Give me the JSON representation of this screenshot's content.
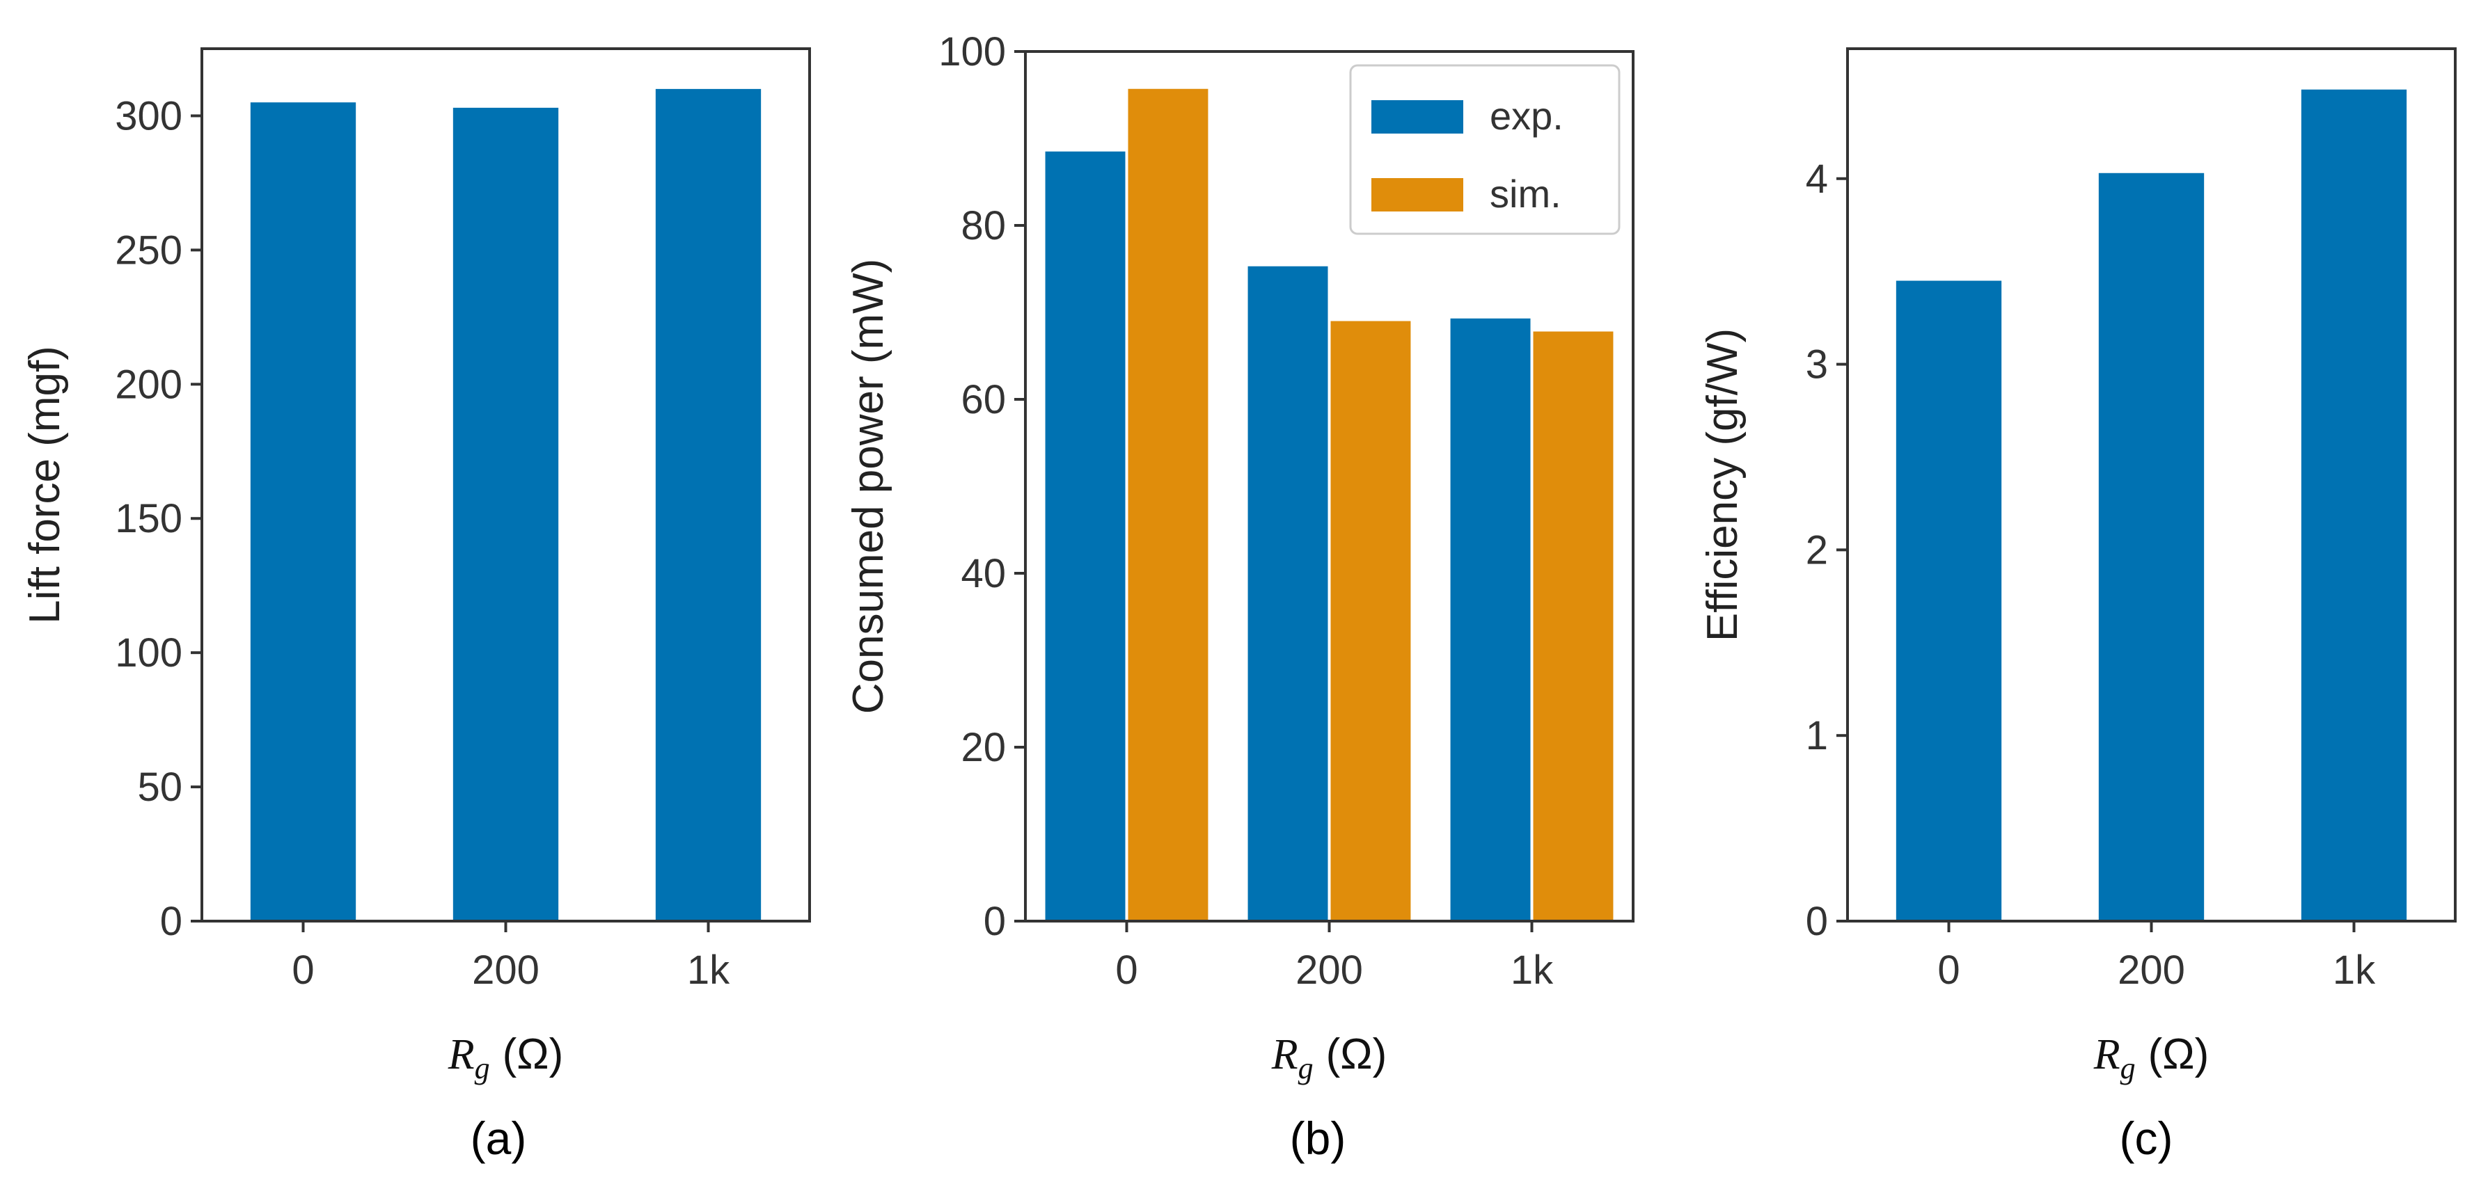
{
  "colors": {
    "exp": "#0072b2",
    "sim": "#e08d0b",
    "axis": "#333333",
    "legend_border": "#cccccc"
  },
  "chart_data": [
    {
      "type": "bar",
      "panel_label": "(a)",
      "categories": [
        "0",
        "200",
        "1k"
      ],
      "series": [
        {
          "values": [
            305,
            303,
            310
          ]
        }
      ],
      "xlabel": {
        "symbol": "R",
        "subscript": "g",
        "unit": "(Ω)"
      },
      "ylabel": "Lift force (mgf)",
      "ylim": [
        0,
        325
      ],
      "yticks": [
        0,
        50,
        100,
        150,
        200,
        250,
        300
      ],
      "ytick_labels": [
        "0",
        "50",
        "100",
        "150",
        "200",
        "250",
        "300"
      ],
      "legend": null
    },
    {
      "type": "bar",
      "panel_label": "(b)",
      "categories": [
        "0",
        "200",
        "1k"
      ],
      "series": [
        {
          "name": "exp.",
          "values": [
            88.5,
            75.3,
            69.3
          ]
        },
        {
          "name": "sim.",
          "values": [
            95.7,
            69.0,
            67.8
          ]
        }
      ],
      "xlabel": {
        "symbol": "R",
        "subscript": "g",
        "unit": "(Ω)"
      },
      "ylabel": "Consumed power (mW)",
      "ylim": [
        0,
        100
      ],
      "yticks": [
        0,
        20,
        40,
        60,
        80,
        100
      ],
      "ytick_labels": [
        "0",
        "20",
        "40",
        "60",
        "80",
        "100"
      ],
      "legend": "top-right"
    },
    {
      "type": "bar",
      "panel_label": "(c)",
      "categories": [
        "0",
        "200",
        "1k"
      ],
      "series": [
        {
          "values": [
            3.45,
            4.03,
            4.48
          ]
        }
      ],
      "xlabel": {
        "symbol": "R",
        "subscript": "g",
        "unit": "(Ω)"
      },
      "ylabel": "Efficiency (gf/W)",
      "ylim": [
        0,
        4.7
      ],
      "yticks": [
        0,
        1,
        2,
        3,
        4
      ],
      "ytick_labels": [
        "0",
        "1",
        "2",
        "3",
        "4"
      ],
      "legend": null
    }
  ]
}
